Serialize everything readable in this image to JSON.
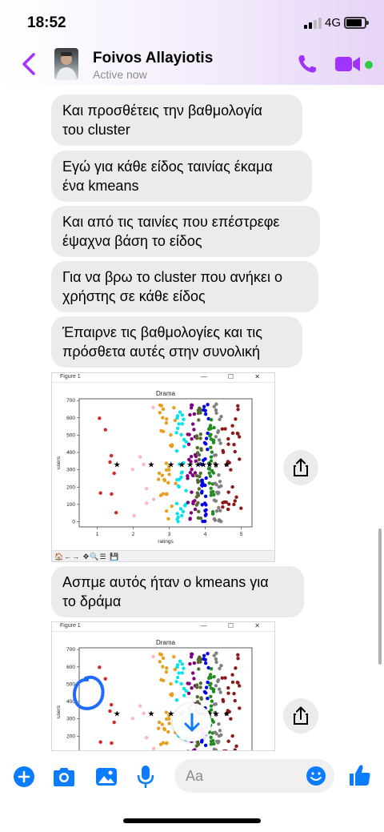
{
  "status": {
    "time": "18:52",
    "network": "4G"
  },
  "header": {
    "name": "Foivos Allayiotis",
    "presence": "Active now"
  },
  "messages": [
    "Και προσθέτεις την βαθμολογία\nτου cluster",
    "Εγώ για κάθε είδος ταινίας έκαμα\nένα kmeans",
    "Και από τις ταινίες που επέστρεφε\nέψαχνα βάση το είδος",
    "Για να βρω το cluster που ανήκει ο\nχρήστης σε κάθε είδος",
    "Έπαιρνε τις βαθμολογίες και τις\nπρόσθετα αυτές στην συνολική",
    "Ασπμε αυτός ήταν ο kmeans για\nτο δράμα"
  ],
  "figure": {
    "window_title": "Figure 1",
    "window_controls": "—  ☐  ✕",
    "toolbar": "🏠←→ ✥🔍☰ 💾",
    "chart_data": {
      "type": "scatter",
      "title": "Drama",
      "xlabel": "ratings",
      "ylabel": "users",
      "xlim": [
        0.5,
        5.3
      ],
      "ylim": [
        -30,
        710
      ],
      "xticks": [
        1,
        2,
        3,
        4,
        5
      ],
      "yticks": [
        0,
        100,
        200,
        300,
        400,
        500,
        600,
        700
      ],
      "clusters": [
        {
          "color": "#d62728",
          "x_range": [
            1.0,
            1.8
          ]
        },
        {
          "color": "#ffb6c1",
          "x_range": [
            1.9,
            2.6
          ]
        },
        {
          "color": "#e6a01e",
          "x_range": [
            2.7,
            3.2
          ]
        },
        {
          "color": "#00e5ee",
          "x_range": [
            3.2,
            3.5
          ]
        },
        {
          "color": "#800080",
          "x_range": [
            3.5,
            3.75
          ]
        },
        {
          "color": "#556b2f",
          "x_range": [
            3.75,
            3.9
          ]
        },
        {
          "color": "#0000ee",
          "x_range": [
            3.9,
            4.1
          ]
        },
        {
          "color": "#228b22",
          "x_range": [
            4.1,
            4.25
          ]
        },
        {
          "color": "#808080",
          "x_range": [
            4.25,
            4.45
          ]
        },
        {
          "color": "#8b1a1a",
          "x_range": [
            4.45,
            5.0
          ]
        }
      ],
      "centroids": {
        "x": [
          1.55,
          2.5,
          3.05,
          3.35,
          3.58,
          3.8,
          3.95,
          4.12,
          4.3,
          4.6
        ],
        "y": [
          330,
          330,
          330,
          330,
          330,
          330,
          330,
          330,
          330,
          330
        ]
      }
    }
  },
  "composer": {
    "placeholder": "Aa"
  },
  "colors": {
    "accent": "#a033ff",
    "messenger_blue": "#0a7cff",
    "bubble": "#ebebeb",
    "online": "#31cc46"
  }
}
